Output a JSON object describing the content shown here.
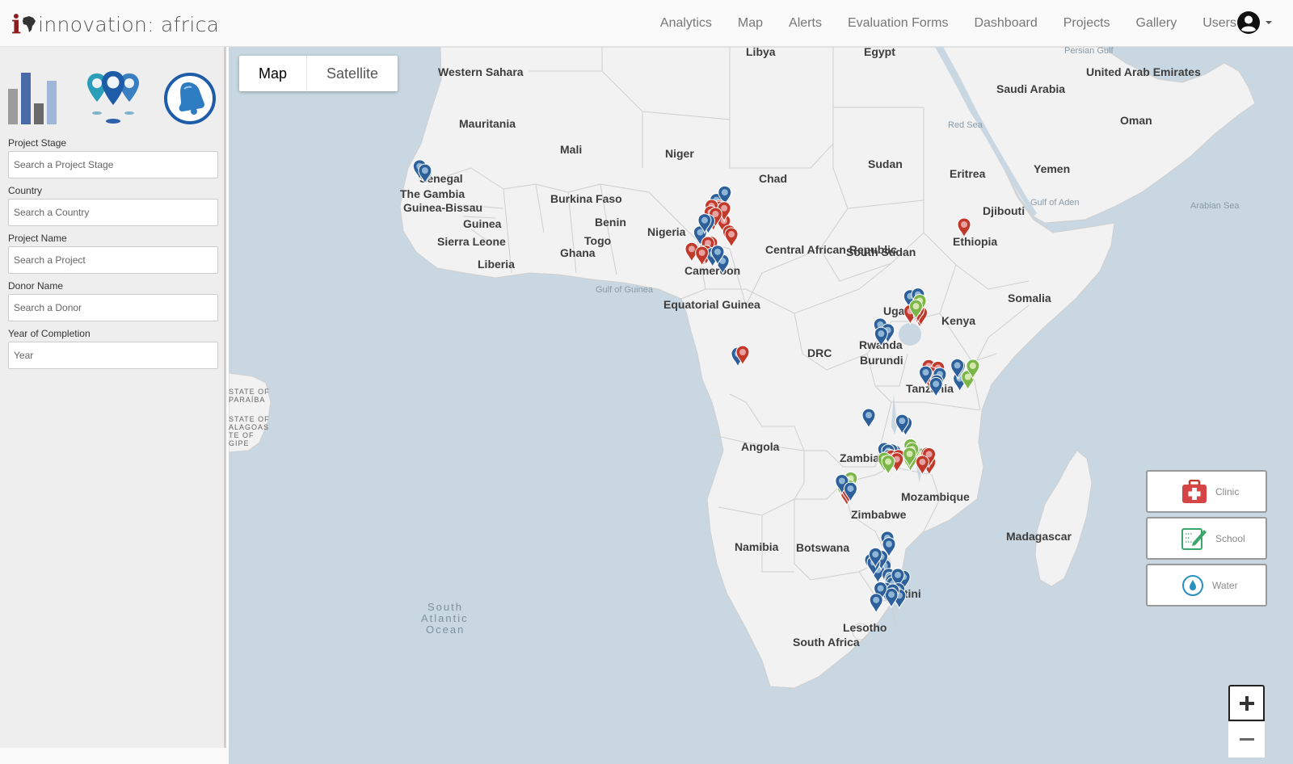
{
  "brand": {
    "text": "innovation: africa",
    "i_letter": "i",
    "word": "innovation: africa"
  },
  "nav": {
    "links": [
      "Analytics",
      "Map",
      "Alerts",
      "Evaluation Forms",
      "Dashboard",
      "Projects",
      "Gallery"
    ],
    "users_label": "Users"
  },
  "sidebar": {
    "icons": [
      "analytics-icon",
      "map-pins-icon",
      "alert-bell-icon"
    ],
    "filters": [
      {
        "label": "Project Stage",
        "placeholder": "Search a Project Stage"
      },
      {
        "label": "Country",
        "placeholder": "Search a Country"
      },
      {
        "label": "Project Name",
        "placeholder": "Search a Project"
      },
      {
        "label": "Donor Name",
        "placeholder": "Search a Donor"
      },
      {
        "label": "Year of Completion",
        "placeholder": "Year"
      }
    ]
  },
  "map": {
    "type_buttons": {
      "map": "Map",
      "satellite": "Satellite"
    },
    "selected_type": "Map",
    "legend": [
      {
        "label": "Clinic",
        "icon": "clinic-icon",
        "color": "#d64545"
      },
      {
        "label": "School",
        "icon": "school-icon",
        "color": "#3aa66b"
      },
      {
        "label": "Water",
        "icon": "water-drop-icon",
        "color": "#2a8fbf"
      }
    ],
    "zoom": {
      "in": "+",
      "out": "−"
    },
    "countries": [
      "Libya",
      "Egypt",
      "Western Sahara",
      "Mauritania",
      "Mali",
      "Niger",
      "Chad",
      "Sudan",
      "Eritrea",
      "Yemen",
      "Saudi Arabia",
      "United Arab Emirates",
      "Oman",
      "Senegal",
      "The Gambia",
      "Guinea-Bissau",
      "Guinea",
      "Sierra Leone",
      "Liberia",
      "Burkina Faso",
      "Benin",
      "Togo",
      "Ghana",
      "Nigeria",
      "Cameroon",
      "Central African Republic",
      "South Sudan",
      "Ethiopia",
      "Djibouti",
      "Somalia",
      "Equatorial Guinea",
      "Uganda",
      "Kenya",
      "Rwanda",
      "Burundi",
      "DRC",
      "Tanzania",
      "Angola",
      "Zambia",
      "Mozambique",
      "Zimbabwe",
      "Namibia",
      "Botswana",
      "Madagascar",
      "Eswatini",
      "Lesotho",
      "South Africa"
    ],
    "seas": [
      "Persian Gulf",
      "Red Sea",
      "Gulf of Aden",
      "Arabian Sea",
      "Gulf of Guinea",
      "South Atlantic Ocean"
    ],
    "brazil_labels": [
      "STATE OF PARAÍBA",
      "STATE OF ALAGOAS",
      "STATE OF SERGIPE"
    ],
    "marker_colors": {
      "water": "#2d5f9a",
      "water_light": "#8fb6d6",
      "clinic": "#c0392b",
      "clinic_light": "#e8a0a0",
      "school": "#7ab648",
      "school_light": "#d6e8b0"
    }
  }
}
